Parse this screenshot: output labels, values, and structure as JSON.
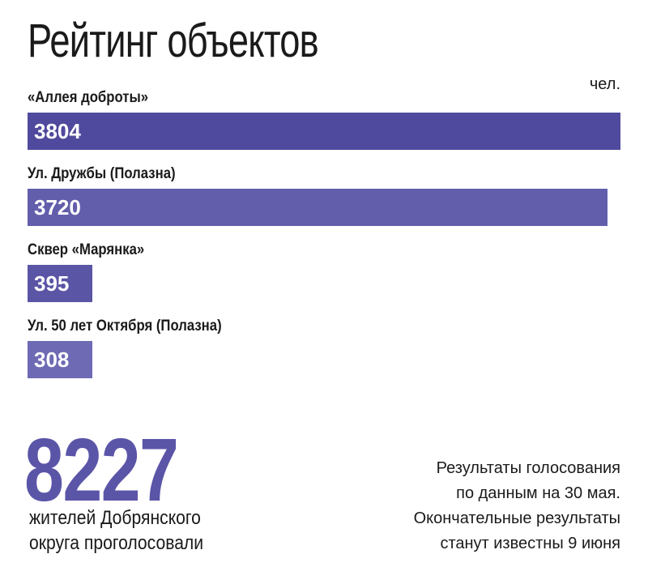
{
  "title": "Рейтинг объектов",
  "unit": "чел.",
  "chart_data": {
    "type": "bar",
    "orientation": "horizontal",
    "categories": [
      "«Аллея доброты»",
      "Ул. Дружбы (Полазна)",
      "Сквер «Марянка»",
      "Ул. 50 лет Октября (Полазна)"
    ],
    "values": [
      3804,
      3720,
      395,
      308
    ],
    "bar_colors": [
      "#4f4a9d",
      "#625eab",
      "#5a55a5",
      "#6e6ab4"
    ],
    "xlim": [
      0,
      3804
    ],
    "title": "Рейтинг объектов",
    "unit": "чел."
  },
  "total": {
    "value": "8227",
    "caption": "жителей Добрянского\nокруга проголосовали",
    "color": "#5b55a8"
  },
  "note": "Результаты голосования\nпо данным на 30 мая.\nОкончательные результаты\nстанут известны 9 июня"
}
